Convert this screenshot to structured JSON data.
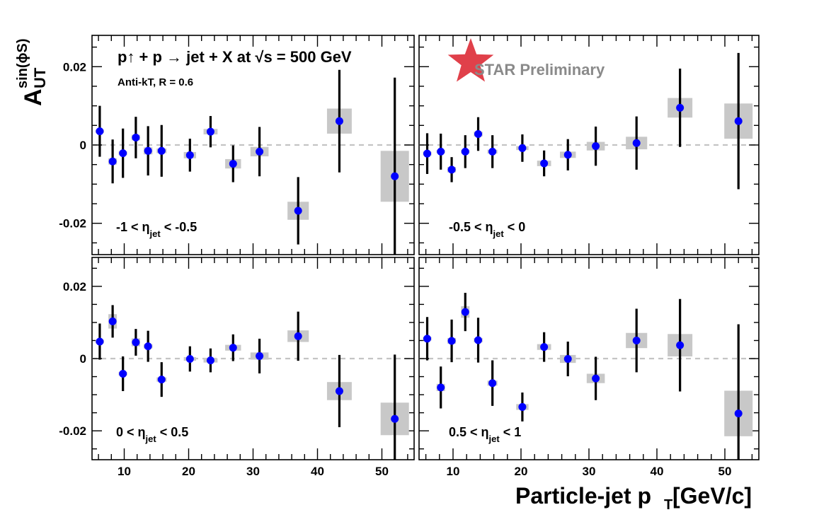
{
  "figure": {
    "title": "p↑ + p → jet + X at √s = 500 GeV",
    "subtitle": "Anti-kT, R = 0.6",
    "watermark": "STAR Preliminary",
    "star_color": "#e0404a",
    "ylabel": "AUT sin(ϕS)",
    "ylabel_main": "A",
    "ylabel_sub": "UT",
    "ylabel_sup": "sin(ϕS)",
    "xlabel": "Particle-jet pT [GeV/c]",
    "xlabel_main": "Particle-jet p",
    "xlabel_sub": "T",
    "xlabel_unit": " [GeV/c]"
  },
  "chart_data": {
    "type": "scatter",
    "layout": "2x2 panels, shared axes",
    "xlim": [
      5,
      55
    ],
    "ylim": [
      -0.028,
      0.028
    ],
    "x_ticks": [
      10,
      20,
      30,
      40,
      50
    ],
    "x_tick_labels": [
      "10",
      "20",
      "30",
      "40",
      "50"
    ],
    "y_ticks": [
      -0.02,
      0,
      0.02
    ],
    "y_tick_labels": [
      "-0.02",
      "0",
      "0.02"
    ],
    "zero_line": "dashed gray",
    "marker_color": "#0000ff",
    "syst_box_color": "#c8c8c8",
    "x": [
      6.2,
      8.2,
      9.8,
      11.8,
      13.7,
      15.8,
      20.2,
      23.4,
      26.9,
      31.0,
      37.0,
      43.4,
      52.0
    ],
    "panels": [
      {
        "label": "-1 < ηjet < -0.5",
        "label_parts": [
          "-1 < η",
          "jet",
          " < -0.5"
        ],
        "y": [
          0.0035,
          -0.0042,
          -0.0021,
          0.0019,
          -0.0015,
          -0.0015,
          -0.0026,
          0.0034,
          -0.0048,
          -0.0017,
          -0.0168,
          0.0061,
          -0.008
        ],
        "stat": [
          0.0065,
          0.0056,
          0.0063,
          0.0053,
          0.0063,
          0.0066,
          0.0042,
          0.004,
          0.0047,
          0.0063,
          0.0086,
          0.0131,
          0.0252
        ],
        "syst": [
          0.0004,
          0.0008,
          0.0005,
          0.0007,
          0.0009,
          0.0006,
          0.0008,
          0.0007,
          0.0012,
          0.0012,
          0.0023,
          0.0032,
          0.0065
        ]
      },
      {
        "label": "-0.5 < ηjet < 0",
        "label_parts": [
          "-0.5 < η",
          "jet",
          " < 0"
        ],
        "y": [
          -0.0022,
          -0.0017,
          -0.0063,
          -0.0017,
          0.0028,
          -0.0017,
          -0.0008,
          -0.0047,
          -0.0025,
          -0.0003,
          0.0005,
          0.0095,
          0.0061
        ],
        "stat": [
          0.0052,
          0.0046,
          0.0032,
          0.0042,
          0.0043,
          0.0042,
          0.0035,
          0.0033,
          0.004,
          0.005,
          0.0068,
          0.01,
          0.0174
        ],
        "syst": [
          0.0005,
          0.0004,
          0.0007,
          0.0005,
          0.0006,
          0.0005,
          0.0005,
          0.0007,
          0.0008,
          0.0011,
          0.0016,
          0.0025,
          0.0045
        ]
      },
      {
        "label": "0 < ηjet < 0.5",
        "label_parts": [
          "0 < η",
          "jet",
          " < 0.5"
        ],
        "y": [
          0.0047,
          0.0103,
          -0.0042,
          0.0045,
          0.0034,
          -0.0058,
          -0.0001,
          -0.0005,
          0.003,
          0.0007,
          0.0062,
          -0.009,
          -0.0167
        ],
        "stat": [
          0.005,
          0.0045,
          0.0048,
          0.0037,
          0.0043,
          0.0048,
          0.0035,
          0.0033,
          0.0037,
          0.0048,
          0.0068,
          0.01,
          0.0178
        ],
        "syst": [
          0.0005,
          0.002,
          0.0005,
          0.0011,
          0.0006,
          0.0006,
          0.0005,
          0.0006,
          0.0008,
          0.001,
          0.0016,
          0.0025,
          0.0045
        ]
      },
      {
        "label": "0.5 < ηjet < 1",
        "label_parts": [
          "0.5 < η",
          "jet",
          " < 1"
        ],
        "y": [
          0.0055,
          -0.008,
          0.0049,
          0.0129,
          0.0051,
          -0.0068,
          -0.0134,
          0.0032,
          -0.0001,
          -0.0055,
          0.005,
          0.0037,
          -0.0152
        ],
        "stat": [
          0.006,
          0.0058,
          0.0059,
          0.0053,
          0.0062,
          0.0063,
          0.004,
          0.0041,
          0.0048,
          0.006,
          0.0088,
          0.0128,
          0.0247
        ],
        "syst": [
          0.0005,
          0.001,
          0.0008,
          0.0016,
          0.0006,
          0.0007,
          0.0008,
          0.0008,
          0.0011,
          0.0013,
          0.0021,
          0.0031,
          0.0063
        ]
      }
    ]
  }
}
